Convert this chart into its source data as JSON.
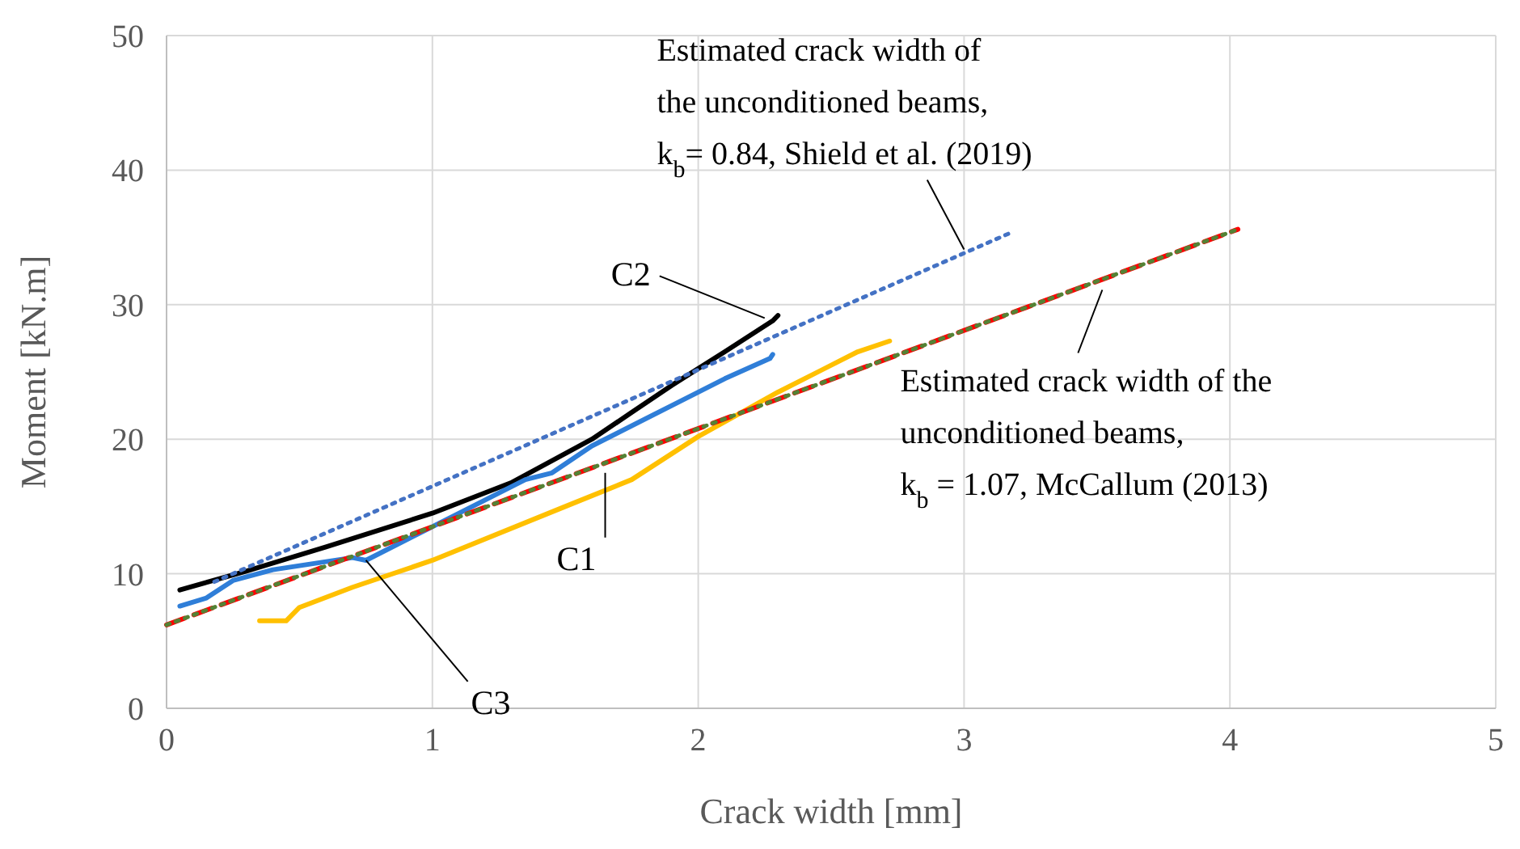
{
  "chart_data": {
    "type": "line",
    "xlabel": "Crack width [mm]",
    "ylabel": "Moment [kN.m]",
    "xlim": [
      0,
      5
    ],
    "xticks": [
      0,
      1,
      2,
      3,
      4,
      5
    ],
    "ylim": [
      0,
      50
    ],
    "yticks": [
      0,
      10,
      20,
      30,
      40,
      50
    ],
    "grid": true,
    "marker": "none",
    "series": [
      {
        "color": "#000000",
        "line_style": "solid",
        "x": [
          0.05,
          0.3,
          0.6,
          1.0,
          1.3,
          1.6,
          1.9,
          2.1,
          2.28,
          2.3
        ],
        "values": [
          8.8,
          10.2,
          12,
          14.5,
          16.8,
          20,
          24,
          26.5,
          28.8,
          29.2
        ]
      },
      {
        "color": "#2f7ed8",
        "line_style": "solid",
        "x": [
          0.05,
          0.15,
          0.25,
          0.4,
          0.7,
          0.75,
          1.0,
          1.35,
          1.45,
          1.6,
          1.9,
          2.1,
          2.27,
          2.28
        ],
        "values": [
          7.6,
          8.2,
          9.5,
          10.3,
          11.2,
          11,
          13.5,
          17,
          17.5,
          19.5,
          22.5,
          24.5,
          26,
          26.3
        ]
      },
      {
        "color": "#ffc000",
        "line_style": "solid",
        "x": [
          0.35,
          0.45,
          0.5,
          0.7,
          1.0,
          1.5,
          1.75,
          2.0,
          2.3,
          2.6,
          2.72
        ],
        "values": [
          6.5,
          6.5,
          7.5,
          9,
          11,
          15,
          17,
          20.2,
          23.5,
          26.5,
          27.3
        ]
      },
      {
        "color": "#4472c4",
        "line_style": "dotted",
        "x": [
          0.18,
          3.17
        ],
        "values": [
          9.4,
          35.3
        ]
      },
      {
        "color": "#ff0000",
        "line_style": "dashed",
        "x": [
          0,
          4.03
        ],
        "values": [
          6.2,
          35.6
        ]
      },
      {
        "color": "#548235",
        "line_style": "dotted",
        "x": [
          0,
          4.03
        ],
        "values": [
          6.2,
          35.6
        ]
      }
    ],
    "annotations": [
      {
        "text": "C2",
        "x": 2.25,
        "y": 29
      },
      {
        "text": "C1",
        "x": 1.65,
        "y": 17.5
      },
      {
        "text": "C3",
        "x": 0.75,
        "y": 11
      },
      {
        "text": "Estimated crack width of\nthe unconditioned beams,\nk$_{b}$= 0.84, Shield et al. (2019)",
        "x": 3.0,
        "y": 34.1
      },
      {
        "text": "Estimated crack width of the\nunconditioned beams,\nk$_{b}$ = 1.07, McCallum (2013)",
        "x": 3.52,
        "y": 31.1
      }
    ]
  }
}
